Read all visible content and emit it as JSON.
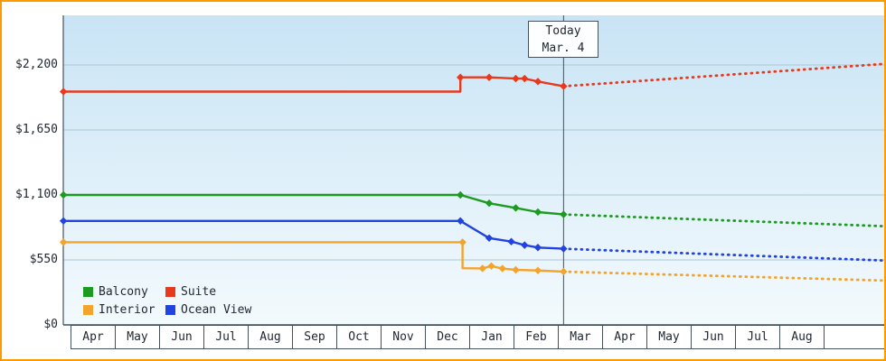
{
  "frame": {
    "border_color": "#ff9900",
    "plot_bg_top": "#c9e4f5",
    "plot_bg_bottom": "#f3fafd",
    "grid_color": "#aac7d8",
    "axis_color": "#44505e",
    "today_line_color": "#44505e"
  },
  "chart_data": {
    "type": "line",
    "x_months": [
      "Apr",
      "May",
      "Jun",
      "Jul",
      "Aug",
      "Sep",
      "Oct",
      "Nov",
      "Dec",
      "Jan",
      "Feb",
      "Mar",
      "Apr",
      "May",
      "Jun",
      "Jul",
      "Aug"
    ],
    "y_ticks": [
      {
        "label": "$0",
        "value": 0
      },
      {
        "label": "$550",
        "value": 550
      },
      {
        "label": "$1,100",
        "value": 1100
      },
      {
        "label": "$1,650",
        "value": 1650
      },
      {
        "label": "$2,200",
        "value": 2200
      }
    ],
    "ylim": [
      0,
      2620
    ],
    "grid": true,
    "legend_position": "bottom-left",
    "today": {
      "line1": "Today",
      "line2": "Mar. 4",
      "x_month": 11.13
    },
    "series": [
      {
        "name": "Balcony",
        "color": "#1d9b21",
        "history": [
          [
            -0.16,
            1100
          ],
          [
            8.8,
            1100
          ],
          [
            9.45,
            1030
          ],
          [
            10.05,
            990
          ],
          [
            10.55,
            955
          ],
          [
            11.13,
            935
          ]
        ],
        "forecast": [
          [
            11.13,
            935
          ],
          [
            18.4,
            835
          ]
        ],
        "markers": [
          [
            -0.16,
            1100
          ],
          [
            8.8,
            1100
          ],
          [
            9.45,
            1030
          ],
          [
            10.05,
            990
          ],
          [
            10.55,
            955
          ],
          [
            11.13,
            935
          ]
        ]
      },
      {
        "name": "Suite",
        "color": "#e8391d",
        "history": [
          [
            -0.16,
            1975
          ],
          [
            8.8,
            1975
          ],
          [
            8.8,
            2095
          ],
          [
            9.45,
            2095
          ],
          [
            10.05,
            2085
          ],
          [
            10.25,
            2085
          ],
          [
            10.55,
            2060
          ],
          [
            11.13,
            2020
          ]
        ],
        "forecast": [
          [
            11.13,
            2020
          ],
          [
            18.4,
            2210
          ]
        ],
        "markers": [
          [
            -0.16,
            1975
          ],
          [
            8.8,
            2095
          ],
          [
            9.45,
            2095
          ],
          [
            10.05,
            2085
          ],
          [
            10.25,
            2085
          ],
          [
            10.55,
            2060
          ],
          [
            11.13,
            2020
          ]
        ]
      },
      {
        "name": "Interior",
        "color": "#f2a42c",
        "history": [
          [
            -0.16,
            700
          ],
          [
            8.85,
            700
          ],
          [
            8.85,
            480
          ],
          [
            9.3,
            478
          ],
          [
            9.5,
            498
          ],
          [
            9.75,
            477
          ],
          [
            10.05,
            466
          ],
          [
            10.55,
            461
          ],
          [
            11.13,
            451
          ]
        ],
        "forecast": [
          [
            11.13,
            451
          ],
          [
            18.4,
            375
          ]
        ],
        "markers": [
          [
            -0.16,
            700
          ],
          [
            8.85,
            700
          ],
          [
            9.3,
            478
          ],
          [
            9.5,
            498
          ],
          [
            9.75,
            477
          ],
          [
            10.05,
            466
          ],
          [
            10.55,
            461
          ],
          [
            11.13,
            451
          ]
        ]
      },
      {
        "name": "Ocean View",
        "color": "#2243df",
        "history": [
          [
            -0.16,
            880
          ],
          [
            8.8,
            880
          ],
          [
            9.45,
            735
          ],
          [
            9.95,
            705
          ],
          [
            10.25,
            675
          ],
          [
            10.55,
            655
          ],
          [
            11.13,
            645
          ]
        ],
        "forecast": [
          [
            11.13,
            645
          ],
          [
            18.4,
            545
          ]
        ],
        "markers": [
          [
            -0.16,
            880
          ],
          [
            8.8,
            880
          ],
          [
            9.45,
            735
          ],
          [
            9.95,
            705
          ],
          [
            10.25,
            675
          ],
          [
            10.55,
            655
          ],
          [
            11.13,
            645
          ]
        ]
      }
    ],
    "legend": [
      {
        "label": "Balcony",
        "color": "#1d9b21"
      },
      {
        "label": "Suite",
        "color": "#e8391d"
      },
      {
        "label": "Interior",
        "color": "#f2a42c"
      },
      {
        "label": "Ocean View",
        "color": "#2243df"
      }
    ]
  }
}
